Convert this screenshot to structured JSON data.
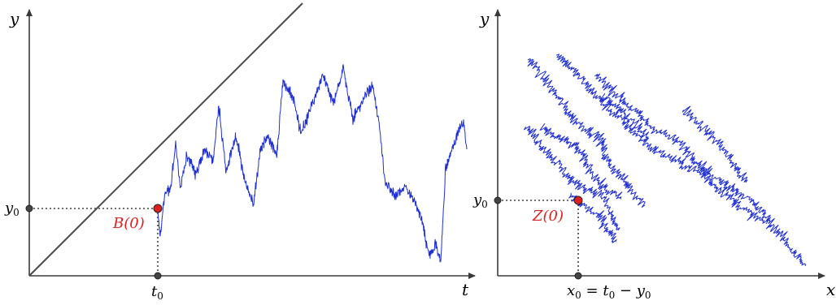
{
  "colors": {
    "path": "#1f2fd6",
    "highlight": "#dd1f1f",
    "axis": "#3a3a3a"
  },
  "left_panel": {
    "y_axis_label": "y",
    "x_axis_label": "t",
    "y0_label": "y",
    "y0_sub": "0",
    "t0_label": "t",
    "t0_sub": "0",
    "point_label": "B(0)"
  },
  "right_panel": {
    "y_axis_label": "y",
    "x_axis_label": "x",
    "y0_label": "y",
    "y0_sub": "0",
    "point_label": "Z(0)",
    "x0_label_main": "x",
    "x0_label_sub": "0",
    "x0_label_rest": " = t",
    "x0_label_sub2": "0",
    "x0_label_minus": " − y",
    "x0_label_sub3": "0"
  }
}
